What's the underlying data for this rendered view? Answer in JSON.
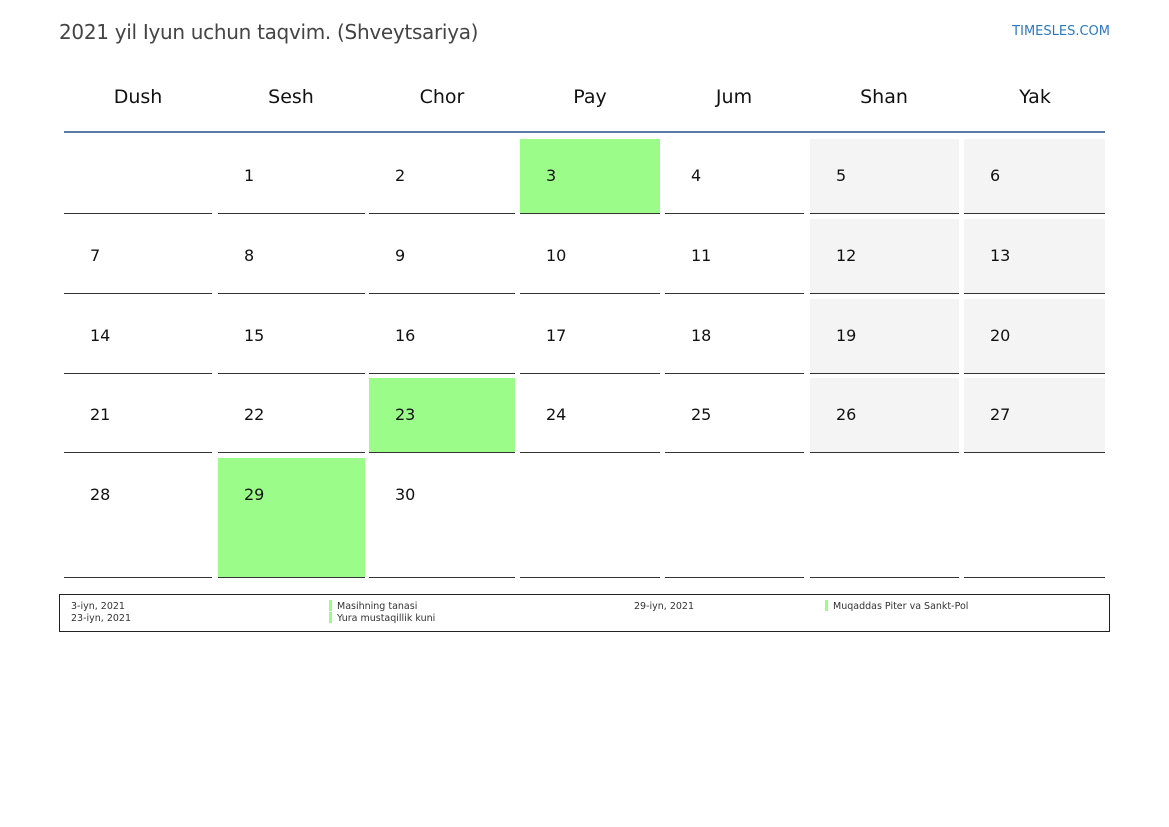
{
  "title": "2021 yil Iyun uchun taqvim. (Shveytsariya)",
  "brand": "TIMESLES.COM",
  "weekdays": [
    "Dush",
    "Sesh",
    "Chor",
    "Pay",
    "Jum",
    "Shan",
    "Yak"
  ],
  "month": {
    "first_weekday_index": 1,
    "days_in_month": 30,
    "weekend_columns": [
      5,
      6
    ],
    "holiday_days": [
      3,
      23,
      29
    ],
    "days": [
      "1",
      "2",
      "3",
      "4",
      "5",
      "6",
      "7",
      "8",
      "9",
      "10",
      "11",
      "12",
      "13",
      "14",
      "15",
      "16",
      "17",
      "18",
      "19",
      "20",
      "21",
      "22",
      "23",
      "24",
      "25",
      "26",
      "27",
      "28",
      "29",
      "30"
    ]
  },
  "colors": {
    "holiday": "#9cfc8a",
    "weekend": "#f4f4f4",
    "header_rule": "#5a7aa4",
    "brand": "#2a7ac0"
  },
  "legend": [
    {
      "date": "3-iyn, 2021",
      "name": "Masihning tanasi"
    },
    {
      "date": "23-iyn, 2021",
      "name": "Yura mustaqillik kuni"
    },
    {
      "date": "29-iyn, 2021",
      "name": "Muqaddas Piter va Sankt-Pol"
    }
  ]
}
